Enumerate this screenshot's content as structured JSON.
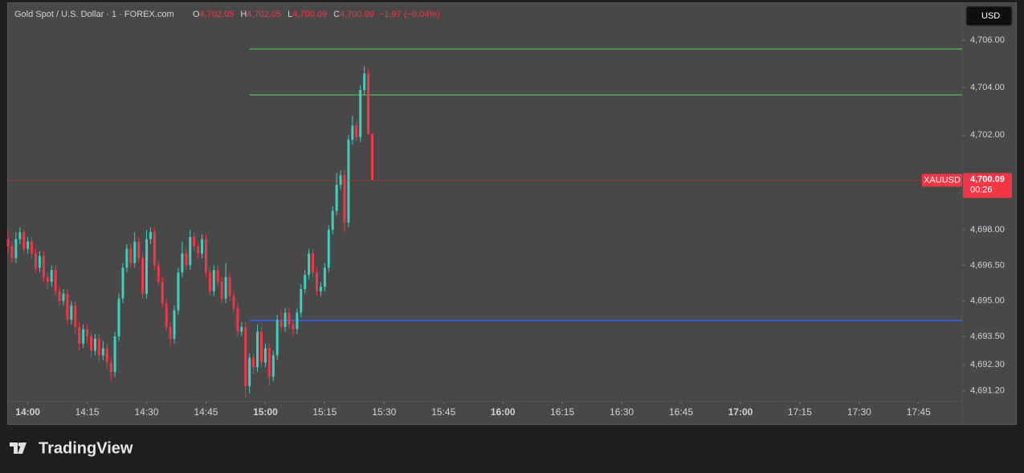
{
  "chart_data": {
    "type": "candlestick",
    "title": "Gold Spot / U.S. Dollar · 1 · FOREX.com",
    "ohlc_legend": {
      "o_letter": "O",
      "o": "4,702.05",
      "h_letter": "H",
      "h": "4,702.05",
      "l_letter": "L",
      "l": "4,700.09",
      "c_letter": "C",
      "c": "4,700.09",
      "change": "−1.97 (−0.04%)"
    },
    "currency_button": "USD",
    "symbol_label": "XAUUSD",
    "last_price_label": "4,700.09",
    "countdown": "00:26",
    "up_color": "#3fcfbe",
    "down_color": "#f23645",
    "grid": false,
    "categories": [
      "13:55",
      "13:56",
      "13:57",
      "13:58",
      "13:59",
      "14:00",
      "14:01",
      "14:02",
      "14:03",
      "14:04",
      "14:05",
      "14:06",
      "14:07",
      "14:08",
      "14:09",
      "14:10",
      "14:11",
      "14:12",
      "14:13",
      "14:14",
      "14:15",
      "14:16",
      "14:17",
      "14:18",
      "14:19",
      "14:20",
      "14:21",
      "14:22",
      "14:23",
      "14:24",
      "14:25",
      "14:26",
      "14:27",
      "14:28",
      "14:29",
      "14:30",
      "14:31",
      "14:32",
      "14:33",
      "14:34",
      "14:35",
      "14:36",
      "14:37",
      "14:38",
      "14:39",
      "14:40",
      "14:41",
      "14:42",
      "14:43",
      "14:44",
      "14:45",
      "14:46",
      "14:47",
      "14:48",
      "14:49",
      "14:50",
      "14:51",
      "14:52",
      "14:53",
      "14:54",
      "14:55",
      "14:56",
      "14:57",
      "14:58",
      "14:59",
      "15:00",
      "15:01",
      "15:02",
      "15:03",
      "15:04",
      "15:05",
      "15:06",
      "15:07",
      "15:08",
      "15:09",
      "15:10",
      "15:11",
      "15:12",
      "15:13",
      "15:14",
      "15:15",
      "15:16",
      "15:17",
      "15:18",
      "15:19",
      "15:20",
      "15:21",
      "15:22",
      "15:23",
      "15:24",
      "15:25",
      "15:26",
      "15:27"
    ],
    "open": [
      4697.6,
      4697.3,
      4696.8,
      4697.6,
      4697.9,
      4697.2,
      4697.5,
      4697.0,
      4696.4,
      4696.9,
      4696.0,
      4695.8,
      4696.3,
      4695.4,
      4695.0,
      4695.3,
      4694.2,
      4694.8,
      4693.9,
      4693.2,
      4693.8,
      4693.5,
      4692.9,
      4693.4,
      4692.7,
      4693.0,
      4692.4,
      4692.0,
      4693.5,
      4695.1,
      4696.4,
      4697.2,
      4696.6,
      4697.5,
      4696.8,
      4695.3,
      4697.6,
      4697.9,
      4696.5,
      4695.8,
      4694.9,
      4693.9,
      4693.4,
      4694.6,
      4696.2,
      4697.0,
      4696.5,
      4697.7,
      4697.3,
      4697.0,
      4697.6,
      4696.2,
      4695.4,
      4696.3,
      4695.8,
      4695.1,
      4696.0,
      4695.2,
      4694.7,
      4693.7,
      4693.9,
      4691.4,
      4692.6,
      4692.2,
      4693.7,
      4692.4,
      4693.0,
      4691.8,
      4692.7,
      4694.2,
      4693.9,
      4694.5,
      4694.0,
      4693.8,
      4694.5,
      4695.5,
      4696.1,
      4697.0,
      4696.2,
      4695.4,
      4695.6,
      4696.4,
      4698.0,
      4698.8,
      4699.9,
      4700.3,
      4698.3,
      4701.8,
      4702.4,
      4701.9,
      4703.9,
      4704.6,
      4702.05
    ],
    "high": [
      4698.0,
      4697.5,
      4697.9,
      4698.1,
      4698.0,
      4697.7,
      4697.7,
      4697.2,
      4697.1,
      4697.1,
      4696.2,
      4696.5,
      4696.5,
      4695.6,
      4695.5,
      4695.5,
      4695.0,
      4695.0,
      4694.1,
      4694.0,
      4694.0,
      4693.7,
      4693.6,
      4693.6,
      4693.3,
      4693.2,
      4692.6,
      4693.7,
      4695.3,
      4696.6,
      4697.4,
      4697.4,
      4697.9,
      4697.7,
      4697.0,
      4698.0,
      4698.1,
      4698.1,
      4696.7,
      4696.0,
      4695.1,
      4694.1,
      4694.8,
      4696.4,
      4697.5,
      4697.2,
      4698.0,
      4697.9,
      4697.5,
      4697.8,
      4697.8,
      4696.4,
      4696.5,
      4696.5,
      4696.0,
      4696.6,
      4696.2,
      4695.4,
      4694.9,
      4694.1,
      4694.1,
      4692.8,
      4692.8,
      4694.0,
      4693.9,
      4693.2,
      4693.2,
      4692.9,
      4694.4,
      4694.6,
      4694.7,
      4694.7,
      4694.2,
      4694.7,
      4695.7,
      4696.3,
      4697.2,
      4697.2,
      4696.4,
      4695.8,
      4696.6,
      4698.2,
      4699.0,
      4700.4,
      4700.5,
      4700.5,
      4702.0,
      4702.8,
      4702.6,
      4704.1,
      4704.9,
      4704.8,
      4702.05
    ],
    "low": [
      4697.0,
      4696.6,
      4696.6,
      4697.4,
      4697.0,
      4697.0,
      4696.8,
      4696.2,
      4696.2,
      4695.8,
      4695.5,
      4695.6,
      4695.2,
      4694.8,
      4694.8,
      4694.0,
      4694.0,
      4693.6,
      4692.9,
      4693.0,
      4693.2,
      4692.6,
      4692.7,
      4692.4,
      4692.5,
      4692.1,
      4691.6,
      4691.8,
      4693.3,
      4694.9,
      4696.2,
      4696.4,
      4696.4,
      4696.6,
      4695.1,
      4695.1,
      4697.4,
      4696.3,
      4695.6,
      4694.7,
      4693.7,
      4693.1,
      4693.2,
      4694.4,
      4696.0,
      4696.3,
      4696.3,
      4697.1,
      4696.8,
      4696.8,
      4696.0,
      4695.2,
      4695.2,
      4695.6,
      4694.9,
      4694.9,
      4695.0,
      4694.5,
      4693.5,
      4693.5,
      4690.9,
      4691.1,
      4691.9,
      4692.0,
      4692.2,
      4692.2,
      4691.4,
      4691.6,
      4692.5,
      4693.7,
      4693.7,
      4693.8,
      4693.5,
      4693.6,
      4694.3,
      4695.3,
      4695.9,
      4696.0,
      4695.2,
      4695.2,
      4695.4,
      4696.2,
      4697.8,
      4698.6,
      4699.7,
      4697.9,
      4698.1,
      4701.6,
      4701.7,
      4701.7,
      4703.7,
      4702.0,
      4700.09
    ],
    "close": [
      4697.3,
      4696.8,
      4697.6,
      4697.9,
      4697.2,
      4697.5,
      4697.0,
      4696.4,
      4696.9,
      4696.0,
      4695.8,
      4696.3,
      4695.4,
      4695.0,
      4695.3,
      4694.2,
      4694.8,
      4693.9,
      4693.2,
      4693.8,
      4693.5,
      4692.9,
      4693.4,
      4692.7,
      4693.0,
      4692.4,
      4692.0,
      4693.5,
      4695.1,
      4696.4,
      4697.2,
      4696.6,
      4697.5,
      4696.8,
      4695.3,
      4697.6,
      4697.9,
      4696.5,
      4695.8,
      4694.9,
      4693.9,
      4693.4,
      4694.6,
      4696.2,
      4697.0,
      4696.5,
      4697.7,
      4697.3,
      4697.0,
      4697.6,
      4696.2,
      4695.4,
      4696.3,
      4695.8,
      4695.1,
      4696.0,
      4695.2,
      4694.7,
      4693.7,
      4693.9,
      4691.4,
      4692.6,
      4692.2,
      4693.7,
      4692.4,
      4693.0,
      4691.8,
      4692.7,
      4694.2,
      4693.9,
      4694.5,
      4694.0,
      4693.8,
      4694.5,
      4695.5,
      4696.1,
      4697.0,
      4696.2,
      4695.4,
      4695.6,
      4696.4,
      4698.0,
      4698.8,
      4699.9,
      4700.3,
      4698.3,
      4701.8,
      4702.4,
      4701.9,
      4703.9,
      4704.6,
      4702.05,
      4700.09
    ],
    "levels": [
      {
        "value": 4705.63,
        "color": "#4caf50",
        "start": "14:56"
      },
      {
        "value": 4703.69,
        "color": "#4caf50",
        "start": "14:56"
      },
      {
        "value": 4694.17,
        "color": "#2962ff",
        "start": "14:56"
      }
    ],
    "xlim": [
      "13:55",
      "17:56"
    ],
    "xticks": [
      "14:00",
      "14:15",
      "14:30",
      "14:45",
      "15:00",
      "15:15",
      "15:30",
      "15:45",
      "16:00",
      "16:15",
      "16:30",
      "16:45",
      "17:00",
      "17:15",
      "17:30",
      "17:45"
    ],
    "ylim": [
      4690.75,
      4707.53
    ],
    "yticks": [
      {
        "value": 4706,
        "label": "4,706.00"
      },
      {
        "value": 4704,
        "label": "4,704.00"
      },
      {
        "value": 4702,
        "label": "4,702.00"
      },
      {
        "value": 4698,
        "label": "4,698.00"
      },
      {
        "value": 4696.5,
        "label": "4,696.50"
      },
      {
        "value": 4695,
        "label": "4,695.00"
      },
      {
        "value": 4693.5,
        "label": "4,693.50"
      },
      {
        "value": 4692.3,
        "label": "4,692.30"
      },
      {
        "value": 4691.2,
        "label": "4,691.20"
      }
    ]
  },
  "footer": {
    "brand": "TradingView"
  }
}
